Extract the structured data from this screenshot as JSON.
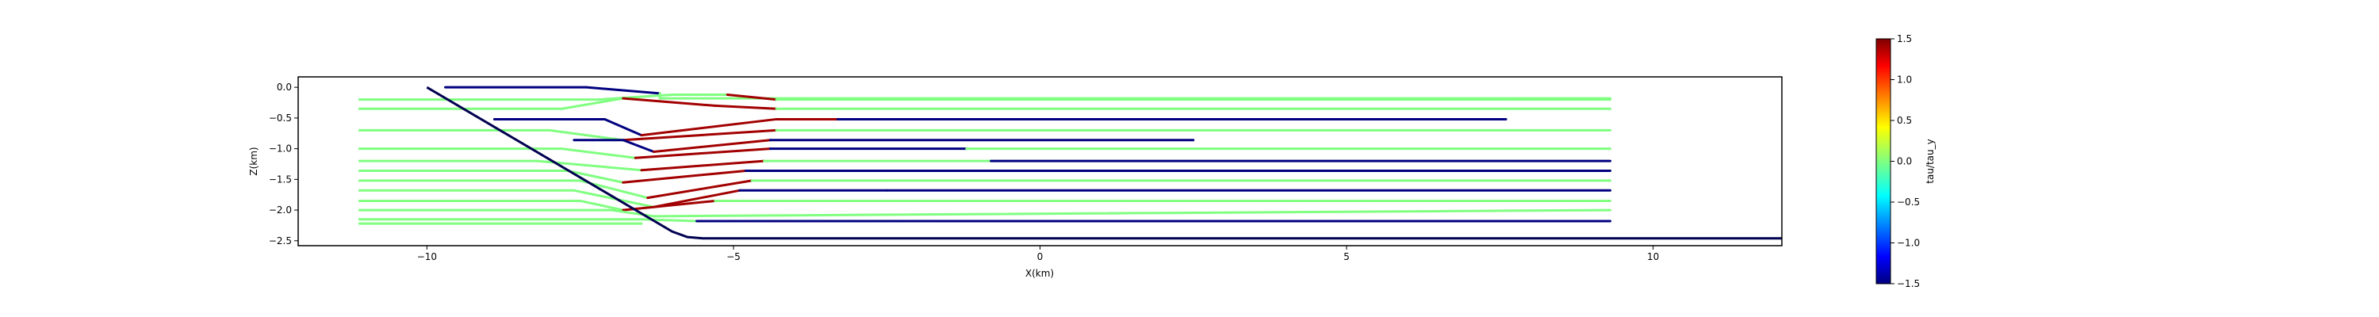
{
  "chart_data": {
    "type": "line",
    "title": "",
    "xlabel": "X(km)",
    "ylabel": "Z(km)",
    "xlim": [
      -12.1,
      12.1
    ],
    "ylim": [
      -2.58,
      0.17
    ],
    "xticks": [
      -10,
      -5,
      0,
      5,
      10
    ],
    "xtick_labels": [
      "−10",
      "−5",
      "0",
      "5",
      "10"
    ],
    "yticks": [
      0.0,
      -0.5,
      -1.0,
      -1.5,
      -2.0,
      -2.5
    ],
    "ytick_labels": [
      "0.0",
      "−0.5",
      "−1.0",
      "−1.5",
      "−2.0",
      "−2.5"
    ],
    "grid": false,
    "fault_boundary": {
      "x": [
        -10.0,
        -6.0,
        -5.75,
        -5.5,
        12.1
      ],
      "z": [
        0.0,
        -2.35,
        -2.44,
        -2.46,
        -2.46
      ],
      "color": "#000050"
    },
    "colorbar": {
      "label": "tau/tau_y",
      "colormap": "jet",
      "vmin": -1.5,
      "vmax": 1.5,
      "ticks": [
        1.5,
        1.0,
        0.5,
        0.0,
        -0.5,
        -1.0,
        -1.5
      ],
      "tick_labels": [
        "1.5",
        "1.0",
        "0.5",
        "0.0",
        "−0.5",
        "−1.0",
        "−1.5"
      ]
    },
    "series": [
      {
        "x": [
          -9.7,
          -7.4,
          -6.2,
          -6.2,
          -4.3,
          9.3
        ],
        "z": [
          0.0,
          0.0,
          -0.1,
          -0.18,
          -0.18,
          -0.18
        ],
        "values": [
          -1.5,
          -1.5,
          0.0,
          0.0,
          0.0,
          0.0
        ]
      },
      {
        "x": [
          -11.1,
          -7.2,
          -6.0,
          -5.1,
          -4.3,
          9.3
        ],
        "z": [
          -0.2,
          -0.2,
          -0.12,
          -0.12,
          -0.2,
          -0.2
        ],
        "values": [
          0.0,
          0.0,
          0.0,
          1.4,
          0.0,
          0.0
        ]
      },
      {
        "x": [
          -11.1,
          -7.8,
          -6.8,
          -5.3,
          -4.3,
          9.3
        ],
        "z": [
          -0.35,
          -0.35,
          -0.18,
          -0.3,
          -0.35,
          -0.35
        ],
        "values": [
          0.0,
          0.0,
          1.4,
          1.4,
          0.0,
          0.0
        ]
      },
      {
        "x": [
          -8.9,
          -7.1,
          -6.5,
          -4.3,
          -3.3,
          7.6
        ],
        "z": [
          -0.52,
          -0.52,
          -0.78,
          -0.52,
          -0.52,
          -0.52
        ],
        "values": [
          -1.5,
          -1.5,
          1.4,
          1.4,
          -1.5,
          -1.5
        ]
      },
      {
        "x": [
          -11.1,
          -8.0,
          -6.8,
          -4.3,
          9.3
        ],
        "z": [
          -0.7,
          -0.7,
          -0.86,
          -0.7,
          -0.7
        ],
        "values": [
          0.0,
          0.0,
          1.4,
          0.0,
          0.0
        ]
      },
      {
        "x": [
          -7.6,
          -6.8,
          -6.3,
          -4.4,
          2.5
        ],
        "z": [
          -0.86,
          -0.86,
          -1.05,
          -0.86,
          -0.86
        ],
        "values": [
          -1.5,
          -1.5,
          1.4,
          -1.5,
          -1.5
        ]
      },
      {
        "x": [
          -11.1,
          -7.8,
          -6.6,
          -4.4,
          -1.2,
          -1.2,
          9.3
        ],
        "z": [
          -1.0,
          -1.0,
          -1.15,
          -1.0,
          -1.0,
          -1.0,
          -1.0
        ],
        "values": [
          0.0,
          0.0,
          1.4,
          -1.5,
          -1.5,
          0.0,
          0.0
        ]
      },
      {
        "x": [
          -11.1,
          -8.2,
          -6.5,
          -4.5,
          -0.8,
          9.3
        ],
        "z": [
          -1.2,
          -1.2,
          -1.35,
          -1.2,
          -1.2,
          -1.2
        ],
        "values": [
          0.0,
          0.0,
          1.4,
          0.0,
          -1.5,
          0.0
        ]
      },
      {
        "x": [
          -11.1,
          -7.7,
          -6.8,
          -4.8,
          -0.7,
          9.3
        ],
        "z": [
          -1.36,
          -1.36,
          -1.55,
          -1.36,
          -1.36,
          -1.36
        ],
        "values": [
          0.0,
          0.0,
          1.4,
          -1.5,
          -1.5,
          0.0
        ]
      },
      {
        "x": [
          -11.1,
          -7.5,
          -6.4,
          -4.7,
          -2.5,
          9.3
        ],
        "z": [
          -1.52,
          -1.52,
          -1.8,
          -1.52,
          -1.52,
          -1.52
        ],
        "values": [
          0.0,
          0.0,
          1.4,
          0.0,
          0.0,
          0.0
        ]
      },
      {
        "x": [
          -11.1,
          -7.6,
          -6.3,
          -4.9,
          -2.5,
          9.3
        ],
        "z": [
          -1.68,
          -1.68,
          -1.95,
          -1.68,
          -1.68,
          -1.68
        ],
        "values": [
          0.0,
          0.0,
          1.4,
          -1.5,
          -1.5,
          0.0
        ]
      },
      {
        "x": [
          -11.1,
          -7.5,
          -6.8,
          -5.3,
          9.3
        ],
        "z": [
          -1.85,
          -1.85,
          -2.0,
          -1.85,
          -1.85
        ],
        "values": [
          0.0,
          0.0,
          1.4,
          0.0,
          0.0
        ]
      },
      {
        "x": [
          -11.1,
          -7.0,
          -6.3,
          9.3
        ],
        "z": [
          -2.0,
          -2.0,
          -2.1,
          -2.0
        ],
        "values": [
          0.0,
          0.0,
          0.0,
          0.0
        ]
      },
      {
        "x": [
          -11.1,
          -6.5,
          -5.6,
          9.3
        ],
        "z": [
          -2.15,
          -2.15,
          -2.18,
          -2.18
        ],
        "values": [
          0.0,
          0.0,
          -1.5,
          -1.5
        ]
      },
      {
        "x": [
          -11.1,
          -7.8,
          -6.5
        ],
        "z": [
          -2.22,
          -2.22,
          -2.22
        ],
        "values": [
          0.0,
          0.0,
          0.0
        ]
      }
    ]
  }
}
